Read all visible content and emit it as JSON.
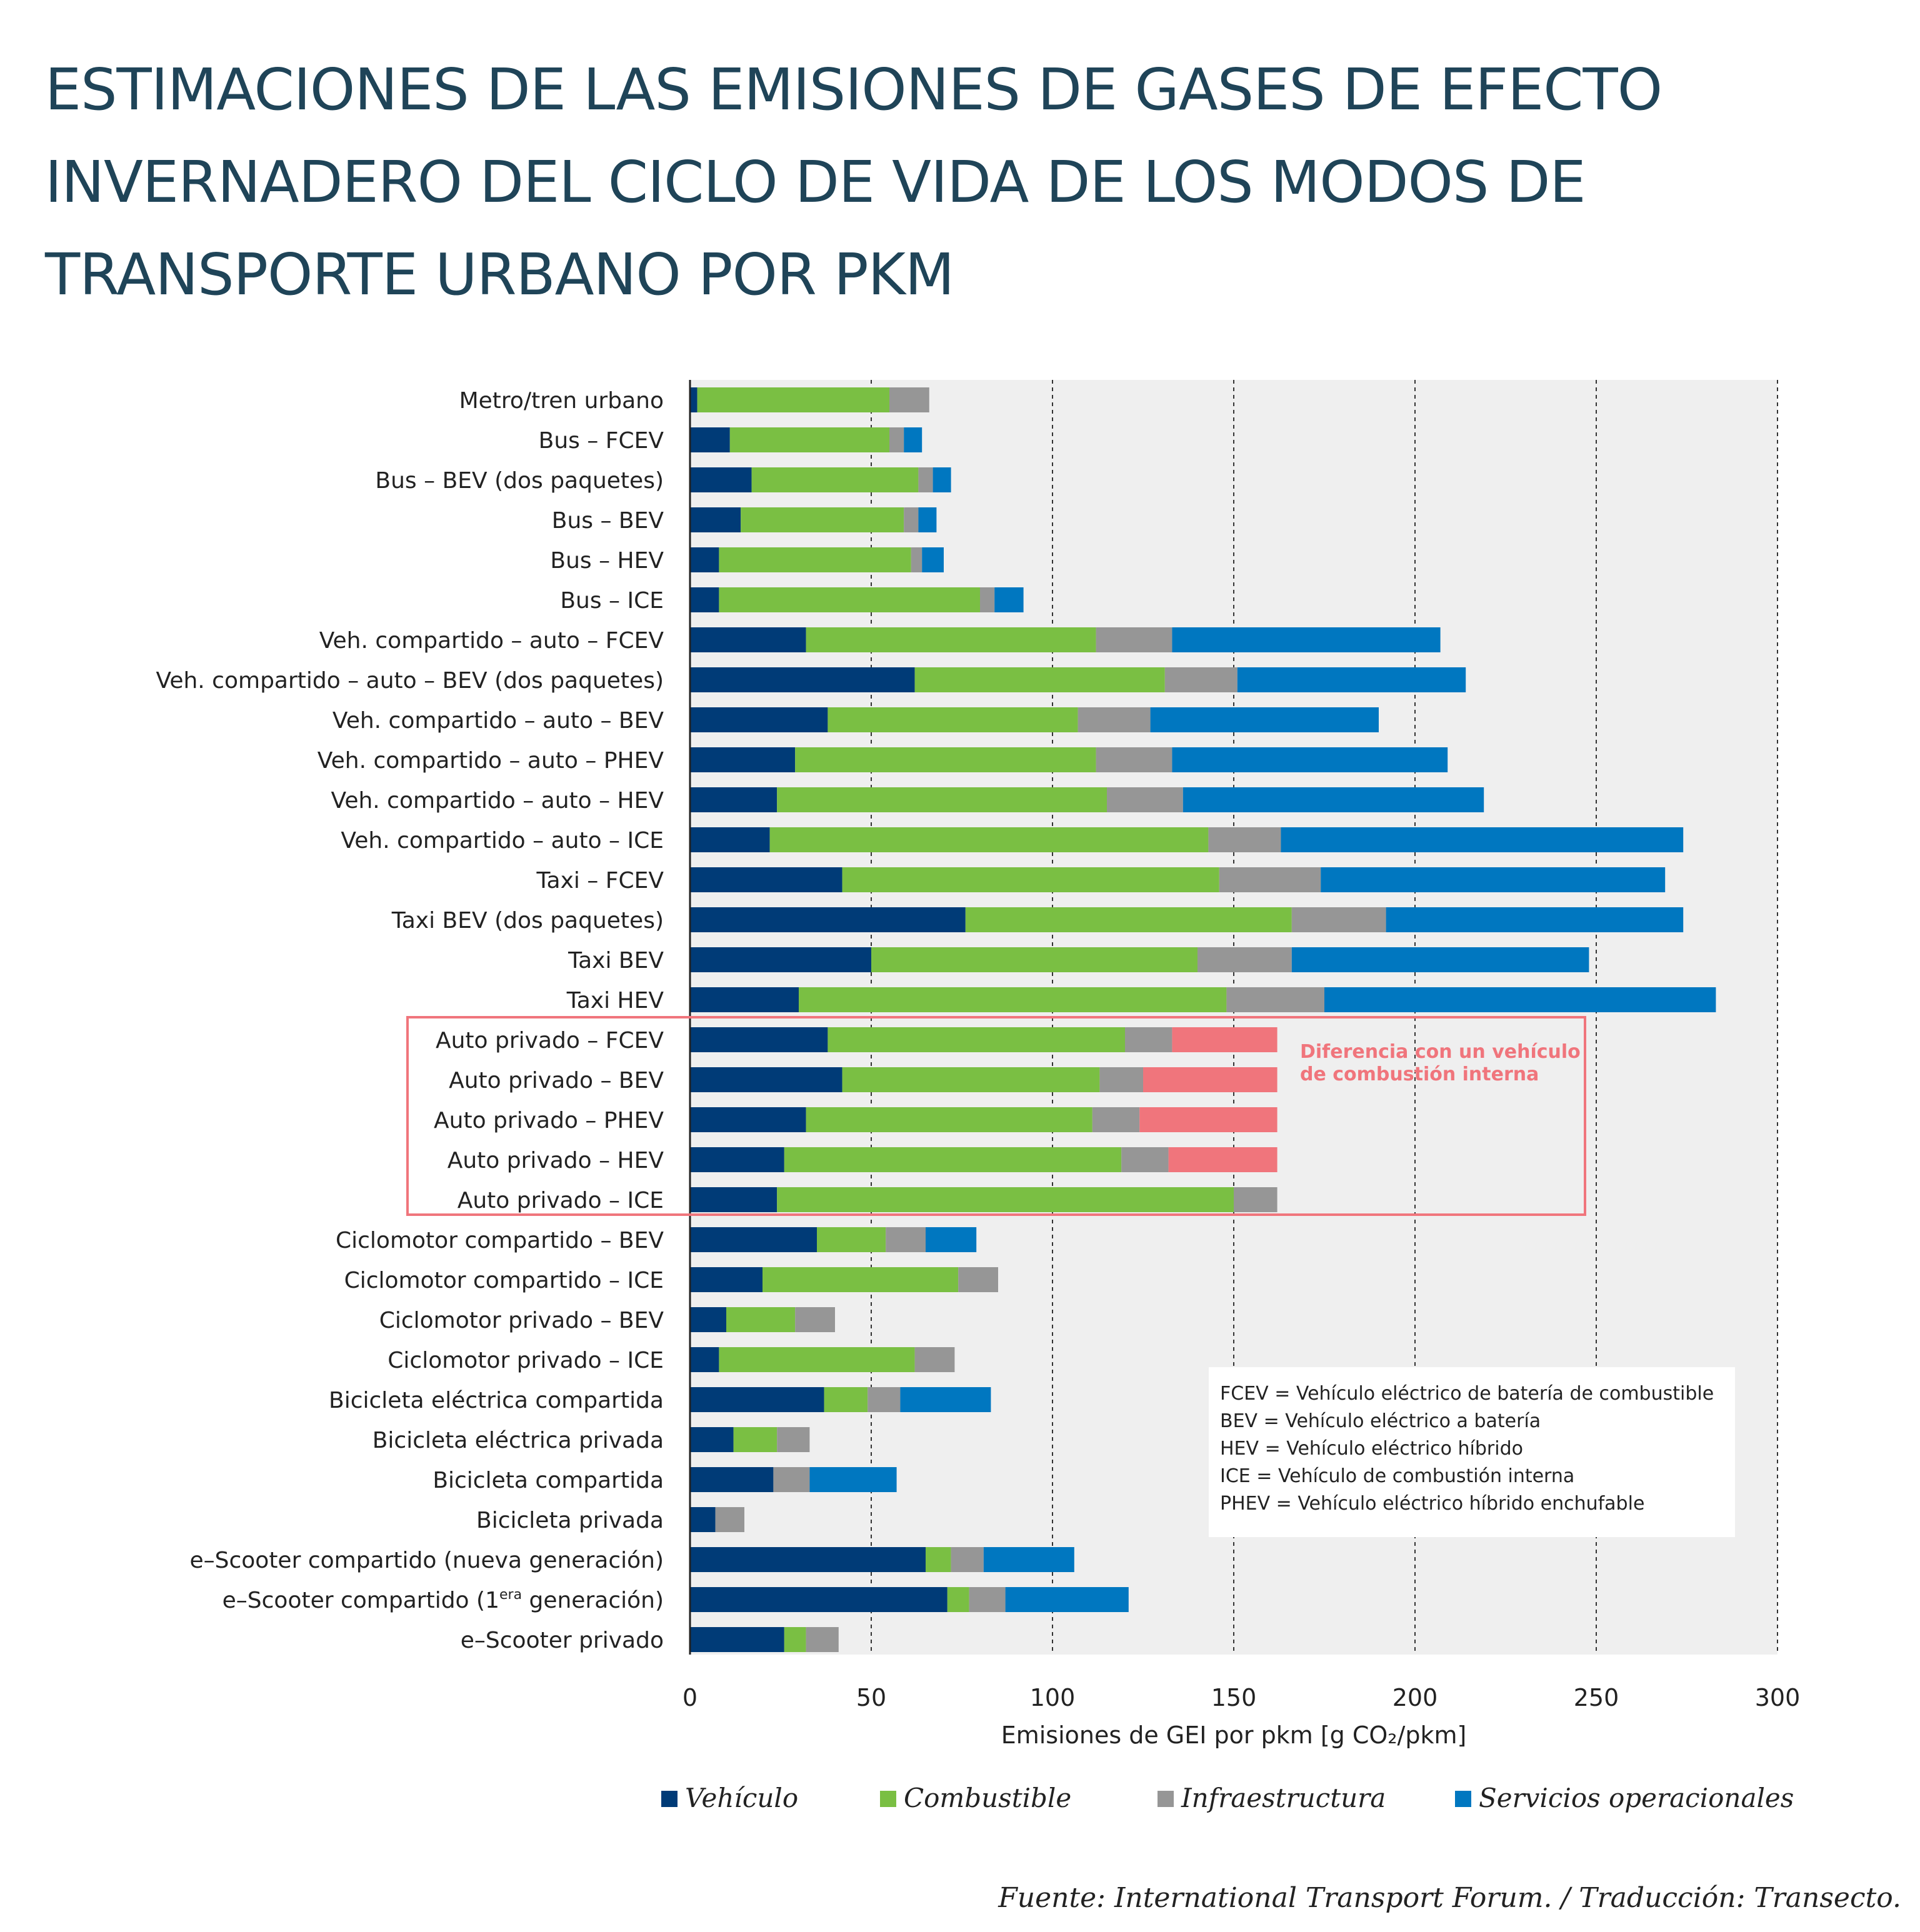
{
  "chart_data": {
    "type": "bar",
    "orientation": "horizontal",
    "stacked": true,
    "title": "ESTIMACIONES DE LAS EMISIONES DE GASES DE EFECTO INVERNADERO DEL CICLO DE VIDA DE LOS MODOS DE TRANSPORTE URBANO POR PKM",
    "xlabel": "Emisiones de GEI por pkm [g CO₂/pkm]",
    "xlim": [
      0,
      300
    ],
    "xticks": [
      "0",
      "50",
      "100",
      "150",
      "200",
      "250",
      "300"
    ],
    "grid": "vertical dashed",
    "legend_position": "bottom",
    "categories": [
      "Metro/tren urbano",
      "Bus – FCEV",
      "Bus – BEV (dos paquetes)",
      "Bus – BEV",
      "Bus – HEV",
      "Bus – ICE",
      "Veh. compartido – auto – FCEV",
      "Veh. compartido – auto – BEV (dos paquetes)",
      "Veh. compartido – auto – BEV",
      "Veh. compartido – auto – PHEV",
      "Veh. compartido – auto – HEV",
      "Veh. compartido – auto – ICE",
      "Taxi – FCEV",
      "Taxi BEV (dos paquetes)",
      "Taxi BEV",
      "Taxi HEV",
      "Auto privado – FCEV",
      "Auto privado – BEV",
      "Auto privado – PHEV",
      "Auto privado – HEV",
      "Auto privado – ICE",
      "Ciclomotor compartido – BEV",
      "Ciclomotor compartido – ICE",
      "Ciclomotor privado – BEV",
      "Ciclomotor privado – ICE",
      "Bicicleta eléctrica compartida",
      "Bicicleta eléctrica privada",
      "Bicicleta compartida",
      "Bicicleta privada",
      "e–Scooter compartido (nueva generación)",
      "e–Scooter compartido (1era generación)",
      "e–Scooter privado"
    ],
    "series": [
      {
        "name": "Vehículo",
        "color": "#003b77",
        "values": [
          2,
          11,
          17,
          14,
          8,
          8,
          32,
          62,
          38,
          29,
          24,
          22,
          42,
          76,
          50,
          30,
          38,
          42,
          32,
          26,
          24,
          35,
          20,
          10,
          8,
          37,
          12,
          23,
          7,
          65,
          71,
          26
        ]
      },
      {
        "name": "Combustible",
        "color": "#7abf43",
        "values": [
          53,
          44,
          46,
          45,
          53,
          72,
          80,
          69,
          69,
          83,
          91,
          121,
          104,
          90,
          90,
          118,
          82,
          71,
          79,
          93,
          126,
          19,
          54,
          19,
          54,
          12,
          12,
          0,
          0,
          7,
          6,
          6
        ]
      },
      {
        "name": "Infraestructura",
        "color": "#969696",
        "values": [
          11,
          4,
          4,
          4,
          3,
          4,
          21,
          20,
          20,
          21,
          21,
          20,
          28,
          26,
          26,
          27,
          13,
          12,
          13,
          13,
          12,
          11,
          11,
          11,
          11,
          9,
          9,
          10,
          8,
          9,
          10,
          9
        ]
      },
      {
        "name": "Servicios operacionales",
        "color": "#0077c0",
        "values": [
          0,
          5,
          5,
          5,
          6,
          8,
          74,
          63,
          63,
          76,
          83,
          111,
          95,
          82,
          82,
          108,
          0,
          0,
          0,
          0,
          0,
          14,
          0,
          0,
          0,
          25,
          0,
          24,
          0,
          25,
          34,
          0
        ]
      }
    ],
    "difference_vs_ice": {
      "color": "#f0757c",
      "reference_total": 162,
      "rows": {
        "16": 29,
        "17": 37,
        "18": 38,
        "19": 30
      }
    },
    "highlight_rows": [
      16,
      20
    ],
    "annotation": "Diferencia con un vehículo de combustión interna",
    "glossary": [
      "FCEV = Vehículo eléctrico de batería de combustible",
      "BEV = Vehículo eléctrico a batería",
      "HEV = Vehículo eléctrico híbrido",
      "ICE = Vehículo de combustión interna",
      "PHEV = Vehículo eléctrico híbrido enchufable"
    ],
    "source": "Fuente: International Transport Forum. / Traducción: Transecto."
  }
}
